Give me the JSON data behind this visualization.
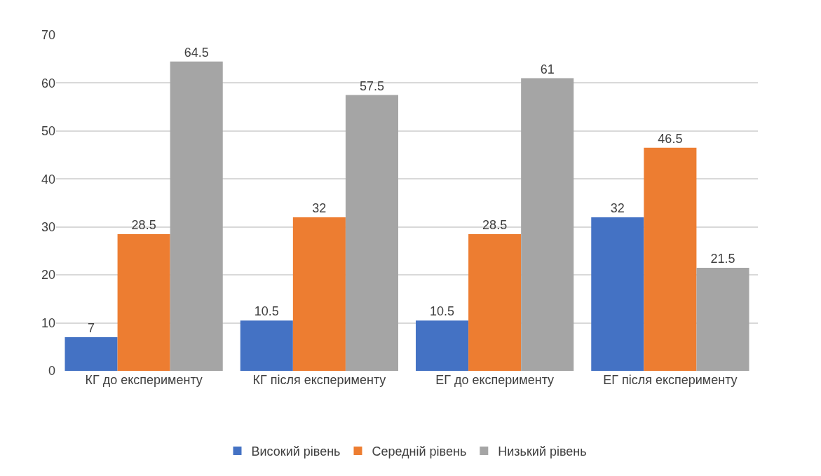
{
  "chart_data": {
    "type": "bar",
    "categories": [
      "КГ до експерименту",
      "КГ після експерименту",
      "ЕГ до експерименту",
      "ЕГ після експерименту"
    ],
    "series": [
      {
        "name": "Високий рівень",
        "color": "#4472c4",
        "values": [
          7,
          10.5,
          10.5,
          32
        ]
      },
      {
        "name": "Середній рівень",
        "color": "#ed7d31",
        "values": [
          28.5,
          32,
          28.5,
          46.5
        ]
      },
      {
        "name": "Низький рівень",
        "color": "#a5a5a5",
        "values": [
          64.5,
          57.5,
          61,
          21.5
        ]
      }
    ],
    "ylim": [
      0,
      70
    ],
    "yticks": [
      0,
      10,
      20,
      30,
      40,
      50,
      60,
      70
    ],
    "grid": "y",
    "legend": "bottom",
    "data_labels": true
  }
}
